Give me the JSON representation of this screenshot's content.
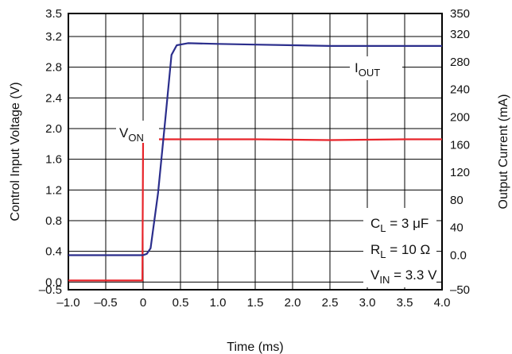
{
  "chart_data": {
    "type": "line",
    "title": "",
    "xlabel": "Time (ms)",
    "ylabel_left": "Control Input Voltage (V)",
    "ylabel_right": "Output Current (mA)",
    "xlim": [
      -1.0,
      4.0
    ],
    "ylim_left": [
      -0.1,
      3.5
    ],
    "ylim_right": [
      -50,
      350
    ],
    "xticks": [
      "–1.0",
      "–0.5",
      "0",
      "0.5",
      "1.0",
      "1.5",
      "2.0",
      "2.5",
      "3.0",
      "3.5",
      "4.0"
    ],
    "yticks_left": [
      "3.5",
      "3.2",
      "2.8",
      "2.4",
      "2.0",
      "1.6",
      "1.2",
      "0.8",
      "0.4",
      "0.0",
      "–0.5"
    ],
    "yticks_right": [
      "350",
      "320",
      "280",
      "240",
      "200",
      "160",
      "120",
      "80",
      "40",
      "0.0",
      "–50"
    ],
    "grid": true,
    "series": [
      {
        "name": "V_ON",
        "axis": "left",
        "color": "#e8242a",
        "x": [
          -1.0,
          -0.01,
          0.0,
          0.5,
          1.5,
          2.5,
          3.5,
          4.0
        ],
        "y": [
          0.02,
          0.02,
          1.86,
          1.86,
          1.86,
          1.85,
          1.86,
          1.86
        ]
      },
      {
        "name": "I_OUT",
        "axis": "right",
        "color": "#2b2e8c",
        "x": [
          -1.0,
          0.0,
          0.05,
          0.1,
          0.2,
          0.3,
          0.38,
          0.45,
          0.6,
          1.0,
          1.5,
          2.0,
          2.5,
          3.0,
          3.5,
          4.0
        ],
        "y": [
          0,
          0,
          2,
          10,
          90,
          200,
          290,
          304,
          307,
          306,
          305,
          304,
          303,
          303,
          303,
          303
        ]
      }
    ],
    "annotations": {
      "von": {
        "main": "V",
        "sub": "ON"
      },
      "iout": {
        "main": "I",
        "sub": "OUT"
      },
      "cl": {
        "main": "C",
        "sub": "L",
        "rest": " = 3 μF"
      },
      "rl": {
        "main": "R",
        "sub": "L",
        "rest": " = 10 Ω"
      },
      "vin": {
        "main": "V",
        "sub": "IN",
        "rest": " = 3.3 V"
      }
    }
  }
}
